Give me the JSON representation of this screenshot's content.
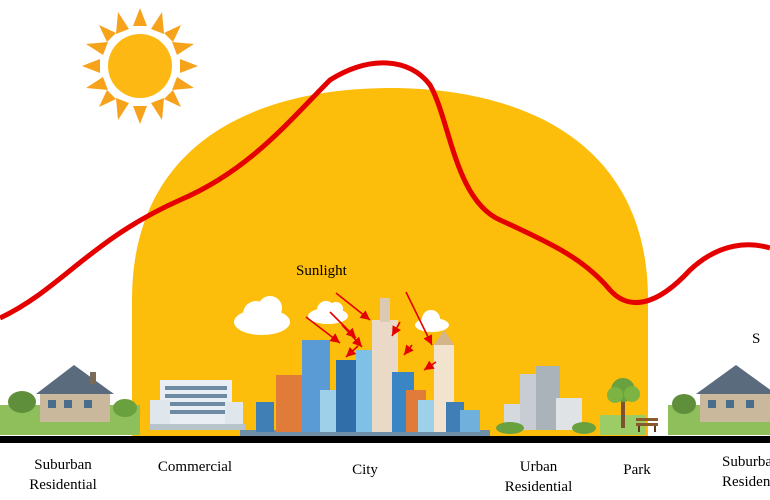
{
  "title": "",
  "annotation": {
    "sunlight": "Sunlight"
  },
  "zones": [
    {
      "id": "suburban-residential-left",
      "label": "Suburban\nResidential"
    },
    {
      "id": "commercial",
      "label": "Commercial"
    },
    {
      "id": "city",
      "label": "City"
    },
    {
      "id": "urban-residential",
      "label": "Urban\nResidential"
    },
    {
      "id": "park",
      "label": "Park"
    },
    {
      "id": "suburban-residential-right",
      "label": "Suburban\nResidential"
    }
  ],
  "edge_text": "S",
  "colors": {
    "heat_dome": "#FDBD0B",
    "sun": "#FDB813",
    "curve": "#E50000",
    "ground": "#000000",
    "arrow": "#E50000"
  },
  "icons": [
    "sun-icon",
    "cloud-icon",
    "house-icon",
    "skyscraper-icon",
    "tree-icon",
    "bench-icon"
  ]
}
